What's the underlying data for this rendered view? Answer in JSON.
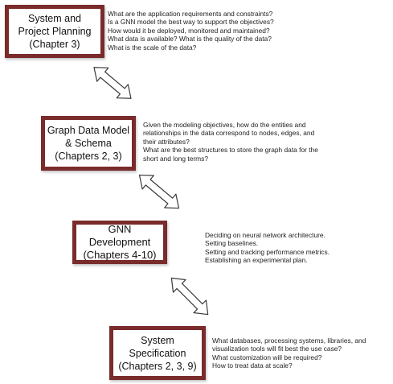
{
  "stages": [
    {
      "title": "System and\nProject Planning\n(Chapter 3)",
      "notes": [
        "What are the application requirements and constraints?",
        "Is a GNN model the best way to support the objectives?",
        "How would it be deployed, monitored and maintained?",
        "What data is available? What is the quality of the data?",
        "What is the scale of the data?"
      ]
    },
    {
      "title": "Graph Data Model\n& Schema\n(Chapters 2, 3)",
      "notes": [
        "Given the modeling objectives, how do the entities and\nrelationships in the data correspond to nodes, edges, and\ntheir attributes?",
        "What are the best structures to store the graph data for the\nshort and long terms?"
      ]
    },
    {
      "title": "GNN Development\n(Chapters 4-10)",
      "notes": [
        "Deciding on neural network architecture.",
        "Setting baselines.",
        "Setting and tracking performance metrics.",
        "Establishing an experimental plan."
      ]
    },
    {
      "title": "System\nSpecification\n(Chapters 2, 3, 9)",
      "notes": [
        "What databases, processing systems, libraries, and\nvisualization tools will fit best the use case?",
        "What customization will be required?",
        "How to treat data at scale?"
      ]
    }
  ],
  "colors": {
    "box_border": "#7a2b2b",
    "arrow_stroke": "#3a3a3a",
    "arrow_fill": "#ffffff"
  }
}
